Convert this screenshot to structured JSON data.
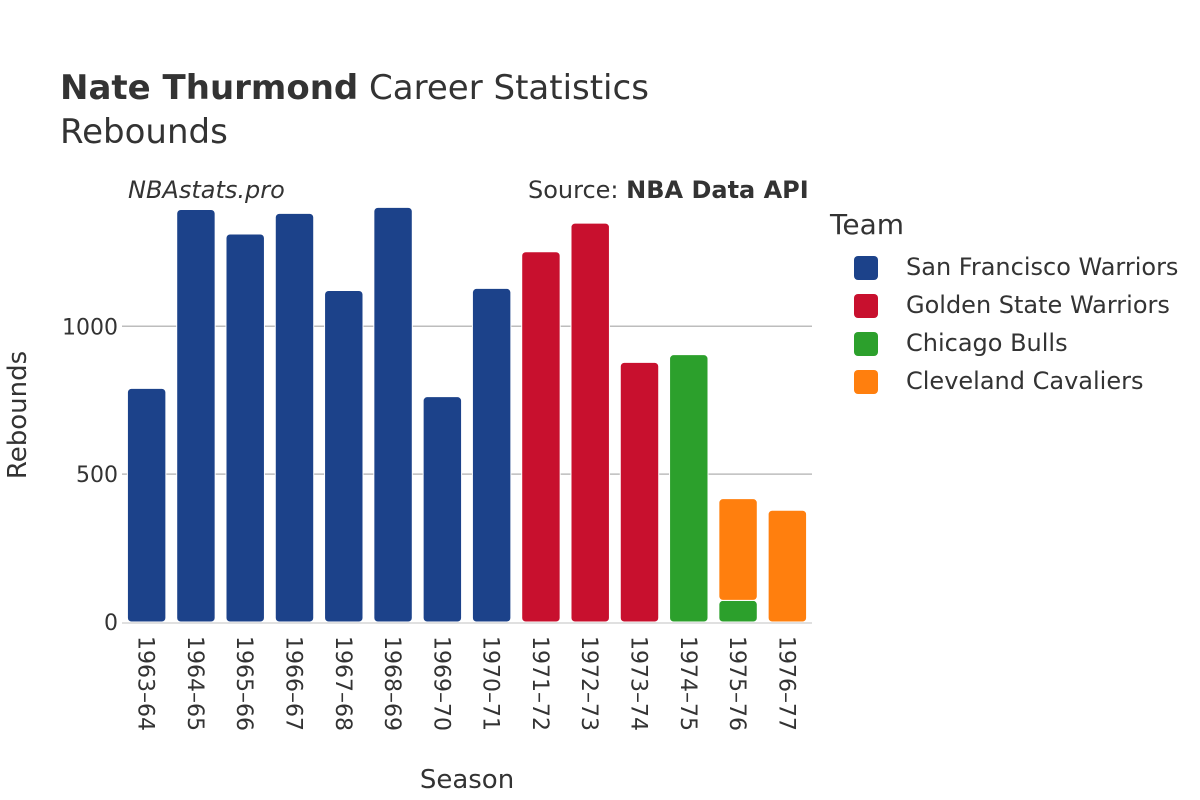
{
  "header": {
    "title_bold": "Nate Thurmond",
    "title_rest": " Career Statistics",
    "subtitle": "Rebounds",
    "watermark": "NBAstats.pro",
    "source_prefix": "Source: ",
    "source_name": "NBA Data API"
  },
  "legend": {
    "title": "Team",
    "items": [
      {
        "label": "San Francisco Warriors",
        "color": "#1c428a"
      },
      {
        "label": "Golden State Warriors",
        "color": "#c8102e"
      },
      {
        "label": "Chicago Bulls",
        "color": "#2ca02c"
      },
      {
        "label": "Cleveland Cavaliers",
        "color": "#ff7f0e"
      }
    ]
  },
  "chart_data": {
    "type": "bar",
    "stacked": true,
    "xlabel": "Season",
    "ylabel": "Rebounds",
    "ylim": [
      0,
      1400
    ],
    "yticks": [
      0,
      500,
      1000
    ],
    "grid": true,
    "legend_position": "right",
    "categories": [
      "1963–64",
      "1964–65",
      "1965–66",
      "1966–67",
      "1967–68",
      "1968–69",
      "1969–70",
      "1970–71",
      "1971–72",
      "1972–73",
      "1973–74",
      "1974–75",
      "1975–76",
      "1976–77"
    ],
    "series": [
      {
        "name": "San Francisco Warriors",
        "color": "#1c428a",
        "values": [
          790,
          1395,
          1312,
          1382,
          1121,
          1402,
          762,
          1128,
          0,
          0,
          0,
          0,
          0,
          0
        ]
      },
      {
        "name": "Golden State Warriors",
        "color": "#c8102e",
        "values": [
          0,
          0,
          0,
          0,
          0,
          0,
          0,
          0,
          1252,
          1349,
          878,
          0,
          0,
          0
        ]
      },
      {
        "name": "Chicago Bulls",
        "color": "#2ca02c",
        "values": [
          0,
          0,
          0,
          0,
          0,
          0,
          0,
          0,
          0,
          0,
          0,
          904,
          73,
          0
        ]
      },
      {
        "name": "Cleveland Cavaliers",
        "color": "#ff7f0e",
        "values": [
          0,
          0,
          0,
          0,
          0,
          0,
          0,
          0,
          0,
          0,
          0,
          0,
          344,
          378
        ]
      }
    ]
  }
}
